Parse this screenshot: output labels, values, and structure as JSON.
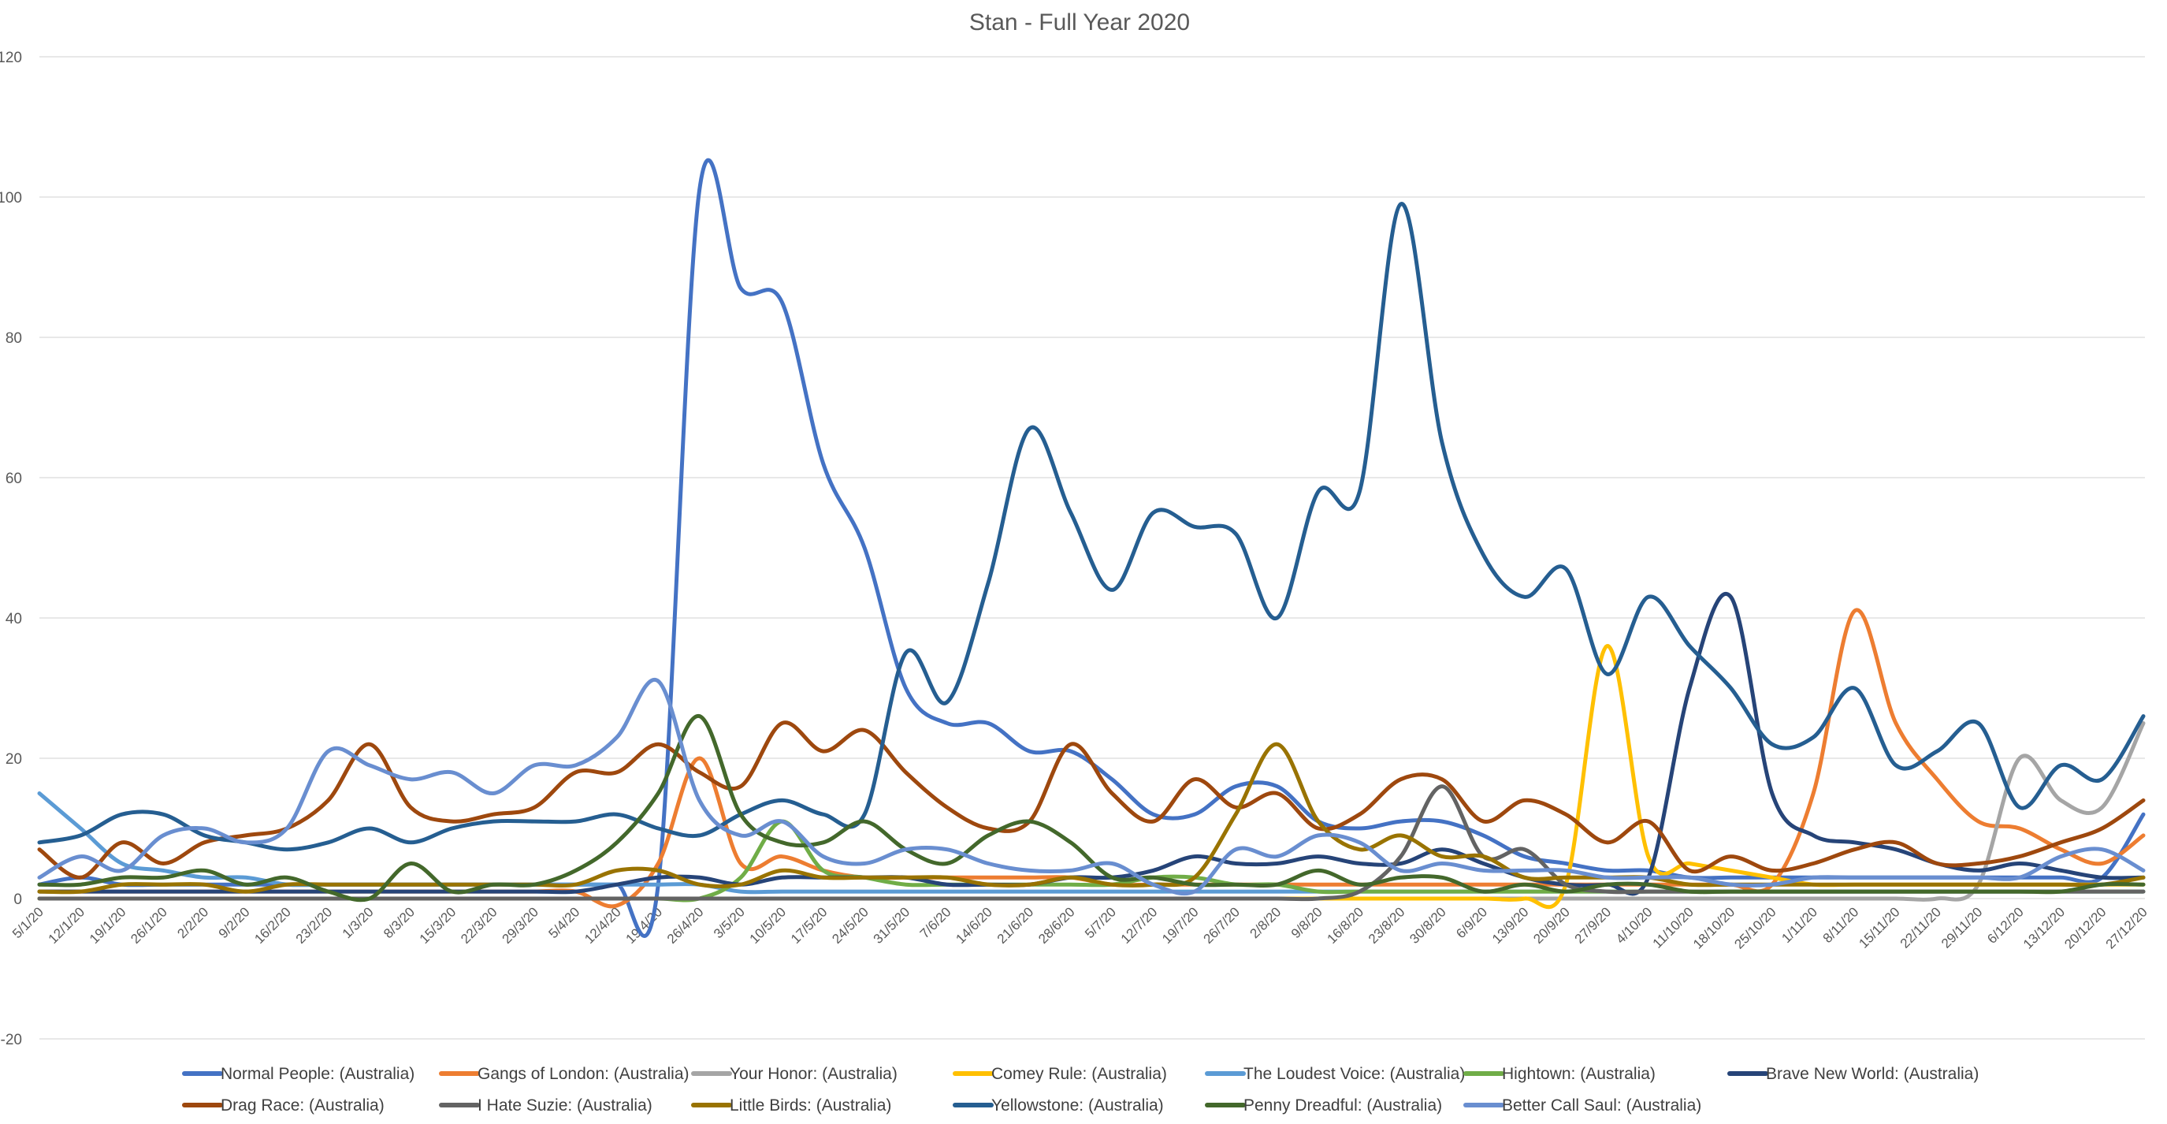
{
  "chart_data": {
    "type": "line",
    "title": "Stan - Full Year 2020",
    "xlabel": "",
    "ylabel": "",
    "ylim": [
      -20,
      120
    ],
    "yticks": [
      -20,
      0,
      20,
      40,
      60,
      80,
      100,
      120
    ],
    "grid": true,
    "legend_position": "bottom",
    "smooth": true,
    "categories": [
      "5/1/20",
      "12/1/20",
      "19/1/20",
      "26/1/20",
      "2/2/20",
      "9/2/20",
      "16/2/20",
      "23/2/20",
      "1/3/20",
      "8/3/20",
      "15/3/20",
      "22/3/20",
      "29/3/20",
      "5/4/20",
      "12/4/20",
      "19/4/20",
      "26/4/20",
      "3/5/20",
      "10/5/20",
      "17/5/20",
      "24/5/20",
      "31/5/20",
      "7/6/20",
      "14/6/20",
      "21/6/20",
      "28/6/20",
      "5/7/20",
      "12/7/20",
      "19/7/20",
      "26/7/20",
      "2/8/20",
      "9/8/20",
      "16/8/20",
      "23/8/20",
      "30/8/20",
      "6/9/20",
      "13/9/20",
      "20/9/20",
      "27/9/20",
      "4/10/20",
      "11/10/20",
      "18/10/20",
      "25/10/20",
      "1/11/20",
      "8/11/20",
      "15/11/20",
      "22/11/20",
      "29/11/20",
      "6/12/20",
      "13/12/20",
      "20/12/20",
      "27/12/20"
    ],
    "series": [
      {
        "name": "Normal People: (Australia)",
        "color": "#4472C4",
        "values": [
          2,
          3,
          2,
          2,
          2,
          2,
          2,
          2,
          2,
          2,
          2,
          2,
          2,
          2,
          2,
          2,
          101,
          87,
          85,
          62,
          50,
          30,
          25,
          25,
          21,
          21,
          17,
          12,
          12,
          16,
          16,
          11,
          10,
          11,
          11,
          9,
          6,
          5,
          4,
          4,
          3,
          3,
          3,
          3,
          3,
          3,
          3,
          3,
          3,
          3,
          3,
          12
        ]
      },
      {
        "name": "Gangs of London: (Australia)",
        "color": "#ED7D31",
        "values": [
          1,
          1,
          1,
          1,
          1,
          1,
          1,
          1,
          1,
          1,
          1,
          1,
          1,
          1,
          -1,
          5,
          20,
          5,
          6,
          4,
          3,
          3,
          3,
          3,
          3,
          3,
          2,
          2,
          2,
          2,
          2,
          2,
          2,
          2,
          2,
          2,
          2,
          2,
          2,
          2,
          2,
          2,
          2,
          15,
          41,
          25,
          17,
          11,
          10,
          7,
          5,
          9
        ]
      },
      {
        "name": "Your Honor: (Australia)",
        "color": "#A5A5A5",
        "values": [
          0,
          0,
          0,
          0,
          0,
          0,
          0,
          0,
          0,
          0,
          0,
          0,
          0,
          0,
          0,
          0,
          0,
          0,
          0,
          0,
          0,
          0,
          0,
          0,
          0,
          0,
          0,
          0,
          0,
          0,
          0,
          0,
          0,
          0,
          0,
          0,
          0,
          0,
          0,
          0,
          0,
          0,
          0,
          0,
          0,
          0,
          0,
          2,
          20,
          14,
          13,
          25
        ]
      },
      {
        "name": "Comey Rule: (Australia)",
        "color": "#FFC000",
        "values": [
          0,
          0,
          0,
          0,
          0,
          0,
          0,
          0,
          0,
          0,
          0,
          0,
          0,
          0,
          0,
          0,
          0,
          0,
          0,
          0,
          0,
          0,
          0,
          0,
          0,
          0,
          0,
          0,
          0,
          0,
          0,
          0,
          0,
          0,
          0,
          0,
          0,
          2,
          36,
          6,
          5,
          4,
          3,
          2,
          2,
          2,
          2,
          2,
          2,
          2,
          2,
          2
        ]
      },
      {
        "name": "The Loudest Voice: (Australia)",
        "color": "#5B9BD5",
        "values": [
          15,
          10,
          5,
          4,
          3,
          3,
          2,
          2,
          2,
          2,
          2,
          2,
          2,
          2,
          2,
          2,
          2,
          1,
          1,
          1,
          1,
          1,
          1,
          1,
          1,
          1,
          1,
          1,
          1,
          1,
          1,
          1,
          1,
          1,
          1,
          1,
          1,
          1,
          1,
          1,
          1,
          1,
          1,
          1,
          1,
          1,
          1,
          1,
          1,
          1,
          1,
          1
        ]
      },
      {
        "name": "Hightown: (Australia)",
        "color": "#70AD47",
        "values": [
          0,
          0,
          0,
          0,
          0,
          0,
          0,
          0,
          0,
          0,
          0,
          0,
          0,
          0,
          0,
          0,
          0,
          3,
          11,
          4,
          3,
          2,
          2,
          2,
          2,
          2,
          2,
          3,
          3,
          2,
          2,
          1,
          1,
          1,
          1,
          1,
          1,
          1,
          1,
          1,
          1,
          1,
          1,
          1,
          1,
          1,
          1,
          1,
          1,
          1,
          1,
          1
        ]
      },
      {
        "name": "Brave New World: (Australia)",
        "color": "#264478",
        "values": [
          1,
          1,
          1,
          1,
          1,
          1,
          1,
          1,
          1,
          1,
          1,
          1,
          1,
          1,
          2,
          3,
          3,
          2,
          3,
          3,
          3,
          3,
          2,
          2,
          2,
          3,
          3,
          4,
          6,
          5,
          5,
          6,
          5,
          5,
          7,
          5,
          3,
          2,
          2,
          3,
          30,
          43,
          15,
          9,
          8,
          7,
          5,
          4,
          5,
          4,
          3,
          3
        ]
      },
      {
        "name": "Drag Race: (Australia)",
        "color": "#9E480E",
        "values": [
          7,
          3,
          8,
          5,
          8,
          9,
          10,
          14,
          22,
          13,
          11,
          12,
          13,
          18,
          18,
          22,
          18,
          16,
          25,
          21,
          24,
          18,
          13,
          10,
          11,
          22,
          15,
          11,
          17,
          13,
          15,
          10,
          12,
          17,
          17,
          11,
          14,
          12,
          8,
          11,
          4,
          6,
          4,
          5,
          7,
          8,
          5,
          5,
          6,
          8,
          10,
          14
        ]
      },
      {
        "name": "I Hate Suzie: (Australia)",
        "color": "#636363",
        "values": [
          0,
          0,
          0,
          0,
          0,
          0,
          0,
          0,
          0,
          0,
          0,
          0,
          0,
          0,
          0,
          0,
          0,
          0,
          0,
          0,
          0,
          0,
          0,
          0,
          0,
          0,
          0,
          0,
          0,
          0,
          0,
          0,
          1,
          6,
          16,
          6,
          7,
          2,
          1,
          1,
          1,
          1,
          1,
          1,
          1,
          1,
          1,
          1,
          1,
          1,
          1,
          1
        ]
      },
      {
        "name": "Little Birds: (Australia)",
        "color": "#997300",
        "values": [
          1,
          1,
          2,
          2,
          2,
          1,
          2,
          2,
          2,
          2,
          2,
          2,
          2,
          2,
          4,
          4,
          2,
          2,
          4,
          3,
          3,
          3,
          3,
          2,
          2,
          3,
          2,
          2,
          3,
          12,
          22,
          11,
          7,
          9,
          6,
          6,
          3,
          3,
          3,
          3,
          2,
          2,
          2,
          2,
          2,
          2,
          2,
          2,
          2,
          2,
          2,
          3
        ]
      },
      {
        "name": "Yellowstone: (Australia)",
        "color": "#255E91",
        "values": [
          8,
          9,
          12,
          12,
          9,
          8,
          7,
          8,
          10,
          8,
          10,
          11,
          11,
          11,
          12,
          10,
          9,
          12,
          14,
          12,
          12,
          35,
          28,
          45,
          67,
          55,
          44,
          55,
          53,
          52,
          40,
          58,
          58,
          99,
          65,
          49,
          43,
          47,
          32,
          43,
          36,
          30,
          22,
          23,
          30,
          19,
          21,
          25,
          13,
          19,
          17,
          26
        ]
      },
      {
        "name": "Penny Dreadful: (Australia)",
        "color": "#43682B",
        "values": [
          2,
          2,
          3,
          3,
          4,
          2,
          3,
          1,
          0,
          5,
          1,
          2,
          2,
          4,
          8,
          15,
          26,
          12,
          8,
          8,
          11,
          7,
          5,
          9,
          11,
          8,
          3,
          3,
          2,
          2,
          2,
          4,
          2,
          3,
          3,
          1,
          2,
          1,
          2,
          2,
          1,
          1,
          1,
          1,
          1,
          1,
          1,
          1,
          1,
          1,
          2,
          2
        ]
      },
      {
        "name": "Better Call Saul: (Australia)",
        "color": "#698ED0",
        "values": [
          3,
          6,
          4,
          9,
          10,
          8,
          10,
          21,
          19,
          17,
          18,
          15,
          19,
          19,
          23,
          31,
          14,
          9,
          11,
          6,
          5,
          7,
          7,
          5,
          4,
          4,
          5,
          2,
          1,
          7,
          6,
          9,
          8,
          4,
          5,
          4,
          4,
          4,
          3,
          3,
          3,
          2,
          2,
          3,
          3,
          3,
          3,
          3,
          3,
          6,
          7,
          4
        ]
      }
    ]
  }
}
